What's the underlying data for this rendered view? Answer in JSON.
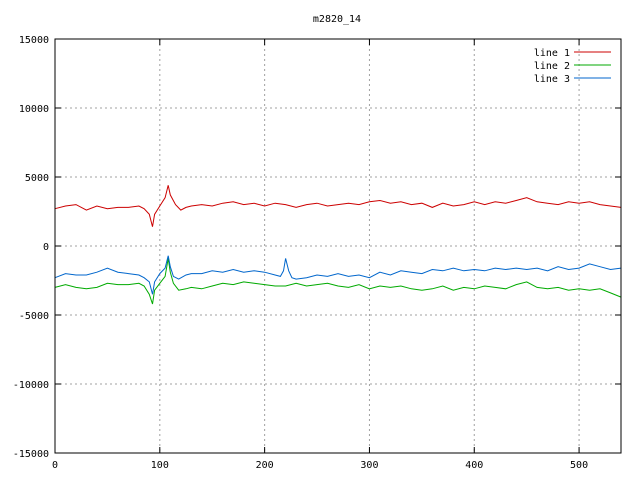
{
  "chart_data": {
    "type": "line",
    "title": "m2820_14",
    "xlabel": "",
    "ylabel": "",
    "xlim": [
      0,
      540
    ],
    "ylim": [
      -15000,
      15000
    ],
    "xticks": [
      0,
      100,
      200,
      300,
      400,
      500
    ],
    "yticks": [
      -15000,
      -10000,
      -5000,
      0,
      5000,
      10000,
      15000
    ],
    "grid": true,
    "legend_position": "top-right",
    "series": [
      {
        "name": "line 1",
        "color": "#cc0000",
        "x": [
          0,
          10,
          20,
          30,
          40,
          50,
          60,
          70,
          80,
          85,
          90,
          93,
          95,
          100,
          105,
          108,
          110,
          115,
          120,
          125,
          130,
          140,
          150,
          160,
          170,
          180,
          190,
          200,
          210,
          220,
          230,
          240,
          250,
          260,
          270,
          280,
          290,
          300,
          310,
          320,
          330,
          340,
          350,
          360,
          370,
          380,
          390,
          400,
          410,
          420,
          430,
          440,
          450,
          460,
          470,
          480,
          490,
          500,
          510,
          520,
          530,
          540
        ],
        "values": [
          2700,
          2900,
          3000,
          2600,
          2900,
          2700,
          2800,
          2800,
          2900,
          2700,
          2300,
          1400,
          2300,
          2900,
          3500,
          4400,
          3700,
          3000,
          2600,
          2800,
          2900,
          3000,
          2900,
          3100,
          3200,
          3000,
          3100,
          2900,
          3100,
          3000,
          2800,
          3000,
          3100,
          2900,
          3000,
          3100,
          3000,
          3200,
          3300,
          3100,
          3200,
          3000,
          3100,
          2800,
          3100,
          2900,
          3000,
          3200,
          3000,
          3200,
          3100,
          3300,
          3500,
          3200,
          3100,
          3000,
          3200,
          3100,
          3200,
          3000,
          2900,
          2800
        ]
      },
      {
        "name": "line 2",
        "color": "#00aa00",
        "x": [
          0,
          10,
          20,
          30,
          40,
          50,
          60,
          70,
          80,
          85,
          90,
          93,
          95,
          100,
          105,
          108,
          110,
          113,
          118,
          125,
          130,
          140,
          150,
          160,
          170,
          180,
          190,
          200,
          210,
          220,
          230,
          240,
          250,
          260,
          270,
          280,
          290,
          300,
          310,
          320,
          330,
          340,
          350,
          360,
          370,
          380,
          390,
          400,
          410,
          420,
          430,
          440,
          450,
          460,
          470,
          480,
          490,
          500,
          510,
          520,
          530,
          540
        ],
        "values": [
          -3000,
          -2800,
          -3000,
          -3100,
          -3000,
          -2700,
          -2800,
          -2800,
          -2700,
          -2900,
          -3500,
          -4200,
          -3200,
          -2700,
          -2200,
          -900,
          -1900,
          -2700,
          -3200,
          -3100,
          -3000,
          -3100,
          -2900,
          -2700,
          -2800,
          -2600,
          -2700,
          -2800,
          -2900,
          -2900,
          -2700,
          -2900,
          -2800,
          -2700,
          -2900,
          -3000,
          -2800,
          -3100,
          -2900,
          -3000,
          -2900,
          -3100,
          -3200,
          -3100,
          -2900,
          -3200,
          -3000,
          -3100,
          -2900,
          -3000,
          -3100,
          -2800,
          -2600,
          -3000,
          -3100,
          -3000,
          -3200,
          -3100,
          -3200,
          -3100,
          -3400,
          -3700
        ]
      },
      {
        "name": "line 3",
        "color": "#0066cc",
        "x": [
          0,
          10,
          20,
          30,
          40,
          50,
          60,
          70,
          80,
          85,
          90,
          93,
          95,
          100,
          105,
          108,
          110,
          113,
          118,
          125,
          130,
          140,
          150,
          160,
          170,
          180,
          190,
          200,
          210,
          215,
          218,
          220,
          223,
          226,
          230,
          240,
          250,
          260,
          270,
          280,
          290,
          300,
          310,
          320,
          330,
          340,
          350,
          360,
          370,
          380,
          390,
          400,
          410,
          420,
          430,
          440,
          450,
          460,
          470,
          480,
          490,
          500,
          510,
          520,
          530,
          540
        ],
        "values": [
          -2300,
          -2000,
          -2100,
          -2100,
          -1900,
          -1600,
          -1900,
          -2000,
          -2100,
          -2300,
          -2600,
          -3500,
          -2600,
          -2000,
          -1600,
          -700,
          -1500,
          -2200,
          -2400,
          -2100,
          -2000,
          -2000,
          -1800,
          -1900,
          -1700,
          -1900,
          -1800,
          -1900,
          -2100,
          -2200,
          -1800,
          -900,
          -1800,
          -2300,
          -2400,
          -2300,
          -2100,
          -2200,
          -2000,
          -2200,
          -2100,
          -2300,
          -1900,
          -2100,
          -1800,
          -1900,
          -2000,
          -1700,
          -1800,
          -1600,
          -1800,
          -1700,
          -1800,
          -1600,
          -1700,
          -1600,
          -1700,
          -1600,
          -1800,
          -1500,
          -1700,
          -1600,
          -1300,
          -1500,
          -1700,
          -1600
        ]
      }
    ]
  }
}
